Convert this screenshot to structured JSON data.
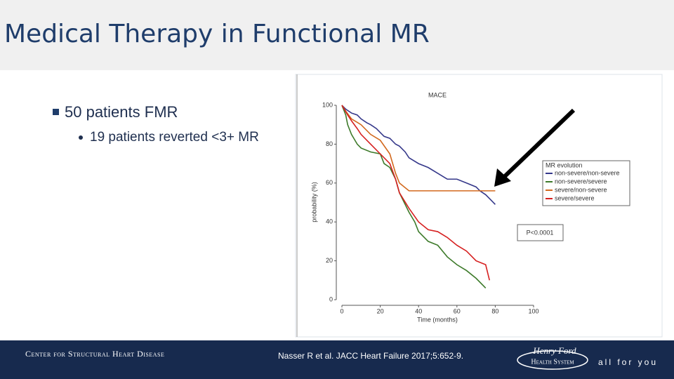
{
  "slide": {
    "title": "Medical Therapy in Functional MR",
    "bullets": [
      {
        "text": "50 patients FMR",
        "sub": [
          "19 patients reverted <3+ MR"
        ]
      }
    ],
    "footer": {
      "center_name": "Center for Structural Heart Disease",
      "citation": "Nasser R et al. JACC Heart Failure  2017;5:652-9.",
      "logo_name": "Henry Ford",
      "logo_sub": "Health System",
      "tagline": "all for you"
    }
  },
  "chart_data": {
    "type": "line",
    "title": "MACE",
    "x_label": "Time (months)",
    "y_label": "probability (%)",
    "xlim": [
      0,
      100
    ],
    "xticks": [
      0,
      20,
      40,
      60,
      80,
      100
    ],
    "ylim": [
      0,
      100
    ],
    "yticks": [
      0,
      20,
      40,
      60,
      80,
      100
    ],
    "grid": false,
    "legend_title": "MR evolution",
    "legend": "right",
    "annotation": "P<0.0001",
    "series": [
      {
        "name": "non-severe/non-severe",
        "color": "#35388a",
        "x": [
          0,
          2,
          5,
          8,
          10,
          13,
          15,
          18,
          20,
          22,
          25,
          28,
          30,
          33,
          35,
          40,
          45,
          50,
          55,
          60,
          65,
          70,
          72,
          75,
          78,
          80
        ],
        "values": [
          100,
          98,
          96,
          95,
          93,
          91,
          90,
          88,
          86,
          84,
          83,
          80,
          79,
          76,
          73,
          70,
          68,
          65,
          62,
          62,
          60,
          58,
          56,
          54,
          51,
          49
        ]
      },
      {
        "name": "non-severe/severe",
        "color": "#3d7a2a",
        "x": [
          0,
          2,
          3,
          5,
          8,
          10,
          15,
          20,
          22,
          25,
          28,
          30,
          35,
          38,
          40,
          45,
          50,
          55,
          60,
          65,
          70,
          75
        ],
        "values": [
          100,
          95,
          90,
          85,
          80,
          78,
          76,
          75,
          70,
          68,
          62,
          55,
          45,
          40,
          35,
          30,
          28,
          22,
          18,
          15,
          11,
          6
        ]
      },
      {
        "name": "severe/non-severe",
        "color": "#d2691e",
        "x": [
          0,
          2,
          5,
          10,
          15,
          20,
          25,
          28,
          30,
          35,
          60,
          65,
          70,
          75,
          80
        ],
        "values": [
          100,
          97,
          93,
          90,
          85,
          82,
          75,
          65,
          60,
          56,
          56,
          56,
          56,
          56,
          56
        ]
      },
      {
        "name": "severe/severe",
        "color": "#d62020",
        "x": [
          0,
          3,
          5,
          8,
          10,
          15,
          20,
          25,
          28,
          30,
          35,
          40,
          45,
          50,
          55,
          60,
          65,
          70,
          75,
          77
        ],
        "values": [
          100,
          95,
          92,
          88,
          85,
          80,
          75,
          70,
          62,
          55,
          47,
          40,
          36,
          35,
          32,
          28,
          25,
          20,
          18,
          10
        ]
      }
    ]
  }
}
